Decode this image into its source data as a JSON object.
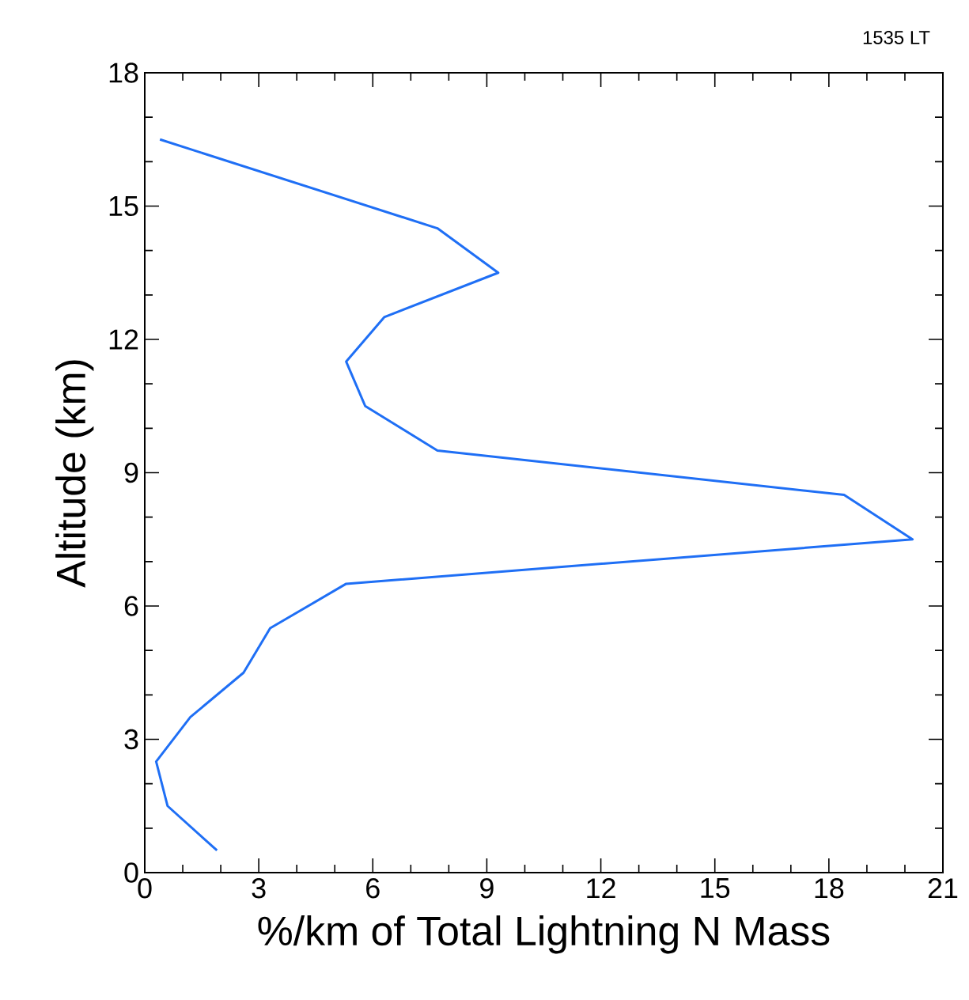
{
  "chart_data": {
    "type": "line",
    "xlabel": "%/km of Total Lightning N Mass",
    "ylabel": "Altitude (km)",
    "annotations": [
      "1535 LT"
    ],
    "series": [
      {
        "color": "#1f6ff5",
        "x": [
          0.4,
          7.7,
          9.3,
          6.3,
          5.3,
          5.8,
          7.7,
          18.4,
          20.2,
          5.3,
          3.3,
          2.6,
          1.2,
          0.3,
          0.6,
          1.9
        ],
        "values": [
          16.5,
          14.5,
          13.5,
          12.5,
          11.5,
          10.5,
          9.5,
          8.5,
          7.5,
          6.5,
          5.5,
          4.5,
          3.5,
          2.5,
          1.5,
          0.5
        ]
      }
    ],
    "xlim": [
      0,
      21
    ],
    "ylim": [
      0,
      18
    ],
    "xticks": [
      0,
      3,
      6,
      9,
      12,
      15,
      18,
      21
    ],
    "yticks": [
      0,
      3,
      6,
      9,
      12,
      15,
      18
    ],
    "grid": false,
    "legend": false,
    "marker": "none",
    "line_style": "solid"
  }
}
